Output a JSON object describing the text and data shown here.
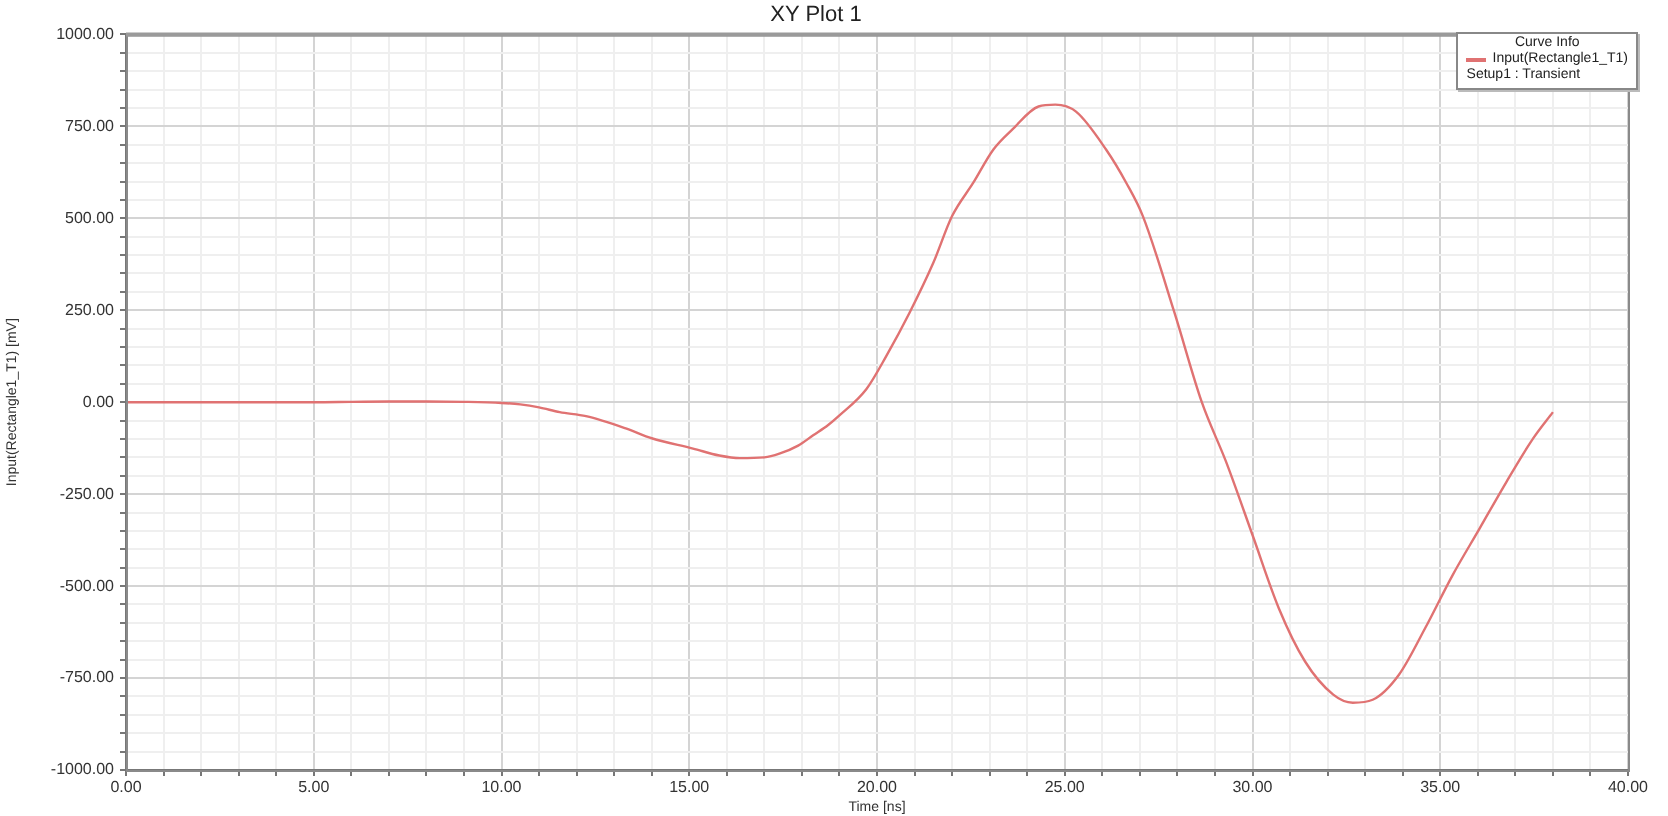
{
  "chart_data": {
    "type": "line",
    "title": "XY Plot 1",
    "xlabel": "Time [ns]",
    "ylabel": "Input(Rectangle1_T1) [mV]",
    "legend_title": "Curve Info",
    "legend": "top right",
    "grid": true,
    "xlim": [
      0,
      40
    ],
    "ylim": [
      -1000,
      1000
    ],
    "xticks": [
      {
        "value": 0,
        "label": "0.00"
      },
      {
        "value": 1,
        "label": null
      },
      {
        "value": 2,
        "label": null
      },
      {
        "value": 3,
        "label": null
      },
      {
        "value": 4,
        "label": null
      },
      {
        "value": 5,
        "label": "5.00"
      },
      {
        "value": 6,
        "label": null
      },
      {
        "value": 7,
        "label": null
      },
      {
        "value": 8,
        "label": null
      },
      {
        "value": 9,
        "label": null
      },
      {
        "value": 10,
        "label": "10.00"
      },
      {
        "value": 11,
        "label": null
      },
      {
        "value": 12,
        "label": null
      },
      {
        "value": 13,
        "label": null
      },
      {
        "value": 14,
        "label": null
      },
      {
        "value": 15,
        "label": "15.00"
      },
      {
        "value": 16,
        "label": null
      },
      {
        "value": 17,
        "label": null
      },
      {
        "value": 18,
        "label": null
      },
      {
        "value": 19,
        "label": null
      },
      {
        "value": 20,
        "label": "20.00"
      },
      {
        "value": 21,
        "label": null
      },
      {
        "value": 22,
        "label": null
      },
      {
        "value": 23,
        "label": null
      },
      {
        "value": 24,
        "label": null
      },
      {
        "value": 25,
        "label": "25.00"
      },
      {
        "value": 26,
        "label": null
      },
      {
        "value": 27,
        "label": null
      },
      {
        "value": 28,
        "label": null
      },
      {
        "value": 29,
        "label": null
      },
      {
        "value": 30,
        "label": "30.00"
      },
      {
        "value": 31,
        "label": null
      },
      {
        "value": 32,
        "label": null
      },
      {
        "value": 33,
        "label": null
      },
      {
        "value": 34,
        "label": null
      },
      {
        "value": 35,
        "label": "35.00"
      },
      {
        "value": 36,
        "label": null
      },
      {
        "value": 37,
        "label": null
      },
      {
        "value": 38,
        "label": null
      },
      {
        "value": 39,
        "label": null
      },
      {
        "value": 40,
        "label": "40.00"
      }
    ],
    "yticks": [
      {
        "value": -1000,
        "label": "-1000.00"
      },
      {
        "value": -950,
        "label": null
      },
      {
        "value": -900,
        "label": null
      },
      {
        "value": -850,
        "label": null
      },
      {
        "value": -800,
        "label": null
      },
      {
        "value": -750,
        "label": "-750.00"
      },
      {
        "value": -700,
        "label": null
      },
      {
        "value": -650,
        "label": null
      },
      {
        "value": -600,
        "label": null
      },
      {
        "value": -550,
        "label": null
      },
      {
        "value": -500,
        "label": "-500.00"
      },
      {
        "value": -450,
        "label": null
      },
      {
        "value": -400,
        "label": null
      },
      {
        "value": -350,
        "label": null
      },
      {
        "value": -300,
        "label": null
      },
      {
        "value": -250,
        "label": "-250.00"
      },
      {
        "value": -200,
        "label": null
      },
      {
        "value": -150,
        "label": null
      },
      {
        "value": -100,
        "label": null
      },
      {
        "value": -50,
        "label": null
      },
      {
        "value": 0,
        "label": "0.00"
      },
      {
        "value": 50,
        "label": null
      },
      {
        "value": 100,
        "label": null
      },
      {
        "value": 150,
        "label": null
      },
      {
        "value": 200,
        "label": null
      },
      {
        "value": 250,
        "label": "250.00"
      },
      {
        "value": 300,
        "label": null
      },
      {
        "value": 350,
        "label": null
      },
      {
        "value": 400,
        "label": null
      },
      {
        "value": 450,
        "label": null
      },
      {
        "value": 500,
        "label": "500.00"
      },
      {
        "value": 550,
        "label": null
      },
      {
        "value": 600,
        "label": null
      },
      {
        "value": 650,
        "label": null
      },
      {
        "value": 700,
        "label": null
      },
      {
        "value": 750,
        "label": "750.00"
      },
      {
        "value": 800,
        "label": null
      },
      {
        "value": 850,
        "label": null
      },
      {
        "value": 900,
        "label": null
      },
      {
        "value": 950,
        "label": null
      },
      {
        "value": 1000,
        "label": "1000.00"
      }
    ],
    "series": [
      {
        "name": "Input(Rectangle1_T1)\nSetup1 : Transient",
        "color": "#e07272",
        "x": [
          0,
          5,
          6,
          7,
          8,
          9,
          10,
          10.5,
          11,
          11.55,
          12.25,
          13.33,
          14,
          15.1,
          15.8,
          16.35,
          17,
          17.4,
          17.9,
          18.3,
          18.7,
          19,
          19.72,
          20.25,
          20.87,
          21.5,
          22,
          22.56,
          23.1,
          23.6,
          24.3,
          24.75,
          25.3,
          26.1,
          26.64,
          27.08,
          27.92,
          28.65,
          29.3,
          30,
          30.7,
          31.4,
          32.15,
          32.67,
          33.2,
          33.9,
          34.6,
          35.33,
          36.05,
          36.76,
          37.47,
          38
        ],
        "values": [
          0,
          0,
          1,
          2,
          2,
          1,
          -2,
          -6,
          -14,
          -27,
          -38,
          -72,
          -98,
          -126,
          -145,
          -152,
          -150,
          -140,
          -118,
          -90,
          -62,
          -36,
          36,
          126,
          244,
          379,
          506,
          596,
          687,
          741,
          804,
          809,
          790,
          687,
          596,
          506,
          244,
          0,
          -163,
          -361,
          -560,
          -705,
          -795,
          -817,
          -809,
          -741,
          -614,
          -470,
          -343,
          -217,
          -99,
          -27
        ]
      }
    ]
  }
}
